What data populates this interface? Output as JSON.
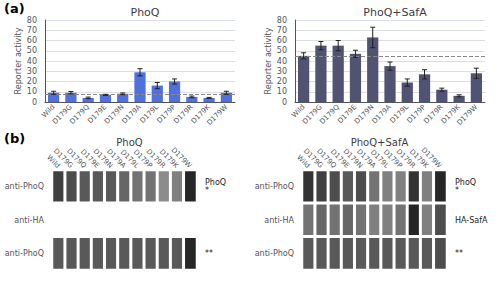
{
  "chart_data": [
    {
      "type": "bar",
      "title": "PhoQ",
      "annotations": [
        "(a)"
      ],
      "categories": [
        "Wild",
        "D179G",
        "D179Q",
        "D179E",
        "D179N",
        "D179A",
        "D179L",
        "D179P",
        "D179R",
        "D179K",
        "D179W"
      ],
      "values": [
        9,
        9,
        4,
        7,
        8,
        29,
        16,
        20,
        5,
        4,
        9
      ],
      "errors": [
        1.5,
        1.2,
        0.8,
        0.5,
        0.8,
        3.5,
        3.0,
        2.5,
        0.8,
        0.5,
        1.5
      ],
      "reference_line": 8,
      "ylabel": "Reporter activity",
      "ylim": [
        0,
        80
      ],
      "yticks": [
        0,
        10,
        20,
        30,
        40,
        50,
        60,
        70,
        80
      ],
      "grid": true
    },
    {
      "type": "bar",
      "title": "PhoQ+SafA",
      "categories": [
        "Wild",
        "D179G",
        "D179Q",
        "D179E",
        "D179N",
        "D179A",
        "D179L",
        "D179P",
        "D179R",
        "D179K",
        "D179W"
      ],
      "values": [
        45,
        55,
        55,
        47,
        63,
        35,
        19,
        27,
        12,
        6,
        28
      ],
      "errors": [
        3.0,
        4.0,
        5.0,
        3.5,
        10.0,
        4.0,
        3.5,
        4.5,
        1.5,
        1.0,
        5.0
      ],
      "reference_line": 45,
      "ylabel": "Reporter activity",
      "ylim": [
        0,
        80
      ],
      "yticks": [
        0,
        10,
        20,
        30,
        40,
        50,
        60,
        70,
        80
      ],
      "grid": true
    },
    {
      "type": "heatmap",
      "title": "PhoQ",
      "annotations": [
        "(b)"
      ],
      "categories": [
        "Wild",
        "D179G",
        "D179Q",
        "D179E",
        "D179N",
        "D179A",
        "D179L",
        "D179P",
        "D179R",
        "D179K",
        "D179W"
      ],
      "rows": [
        "anti-PhoQ",
        "anti-HA",
        "anti-PhoQ"
      ],
      "row_annotations": [
        [
          "PhoQ",
          "*"
        ],
        [],
        [
          "**"
        ]
      ],
      "values": [
        [
          0.75,
          0.7,
          0.65,
          0.65,
          0.65,
          0.6,
          0.55,
          0.55,
          0.45,
          0.5,
          0.85
        ],
        [
          0.0,
          0.0,
          0.0,
          0.0,
          0.0,
          0.0,
          0.0,
          0.0,
          0.0,
          0.0,
          0.0
        ],
        [
          0.65,
          0.65,
          0.65,
          0.65,
          0.65,
          0.65,
          0.65,
          0.65,
          0.65,
          0.65,
          0.85
        ]
      ],
      "zlim": [
        0,
        1
      ]
    },
    {
      "type": "heatmap",
      "title": "PhoQ+SafA",
      "categories": [
        "Wild",
        "D179G",
        "D179Q",
        "D179E",
        "D179N",
        "D179A",
        "D179L",
        "D179P",
        "D179R",
        "D179K",
        "D179W"
      ],
      "rows": [
        "anti-PhoQ",
        "anti-HA",
        "anti-PhoQ"
      ],
      "row_annotations": [
        [
          "PhoQ",
          "*"
        ],
        [
          "HA-SafA"
        ],
        [
          "**"
        ]
      ],
      "values": [
        [
          0.8,
          0.75,
          0.7,
          0.65,
          0.7,
          0.55,
          0.5,
          0.5,
          0.8,
          0.5,
          0.85
        ],
        [
          0.55,
          0.6,
          0.55,
          0.6,
          0.55,
          0.5,
          0.5,
          0.55,
          0.85,
          0.5,
          0.7
        ],
        [
          0.65,
          0.65,
          0.65,
          0.65,
          0.65,
          0.65,
          0.65,
          0.65,
          0.65,
          0.65,
          0.7
        ]
      ],
      "zlim": [
        0,
        1
      ]
    }
  ]
}
